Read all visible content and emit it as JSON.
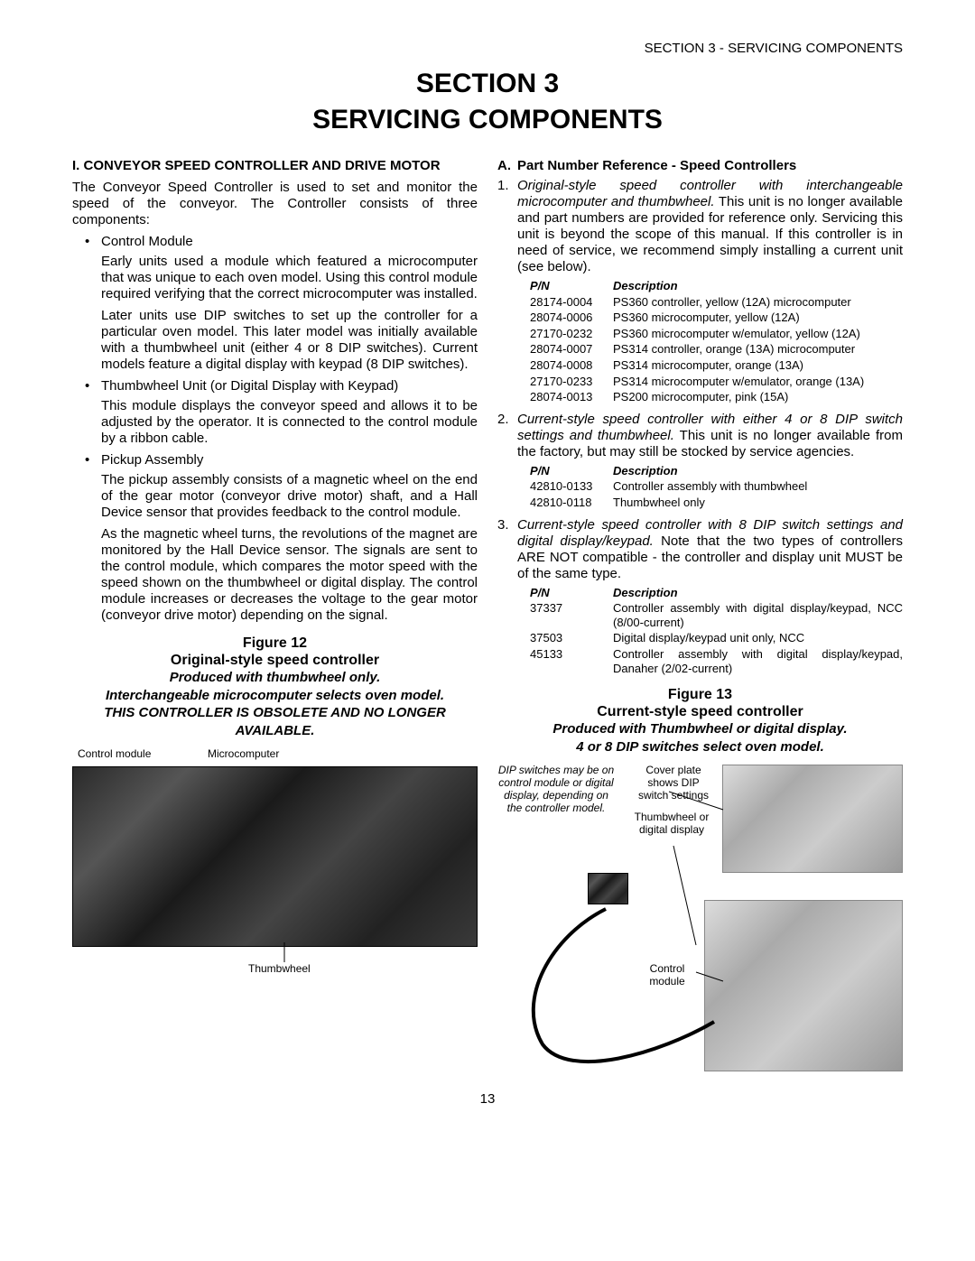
{
  "header_right": "SECTION 3 - SERVICING COMPONENTS",
  "title1": "SECTION 3",
  "title2": "SERVICING COMPONENTS",
  "left": {
    "head": "I. CONVEYOR SPEED CONTROLLER AND DRIVE MOTOR",
    "intro": "The Conveyor Speed Controller is used to set and monitor the speed of the conveyor.  The Controller consists of three components:",
    "b1": "Control Module",
    "b1p1": "Early units used a module which featured a microcomputer that was unique to each oven model.  Using this control module required verifying that the correct microcomputer was installed.",
    "b1p2": "Later units use DIP switches to set up the controller for a particular oven model.  This later model was initially available with a thumbwheel unit (either 4 or 8 DIP switches).  Current models feature a digital display with keypad (8 DIP switches).",
    "b2": "Thumbwheel Unit (or Digital Display with Keypad)",
    "b2p": "This module displays the conveyor speed and allows it to be adjusted by the operator.  It is connected to the control module by a ribbon cable.",
    "b3": "Pickup Assembly",
    "b3p1": "The pickup assembly consists of a magnetic wheel on the end of the gear motor (conveyor drive motor) shaft, and a Hall Device sensor that provides feedback to the control module.",
    "b3p2": "As the magnetic wheel turns, the revolutions of the magnet are monitored by the Hall Device sensor.  The signals are sent to the control module, which compares the motor speed with the speed shown on the thumbwheel or digital display.  The control module increases or decreases the voltage to the gear motor (conveyor drive motor) depending on the signal."
  },
  "right": {
    "head_a": "A.",
    "head_a_text": "Part Number Reference - Speed Controllers",
    "n1_it": "Original-style speed controller with interchangeable microcomputer and thumbwheel.",
    "n1_rest": "  This unit is no longer available and part numbers are provided for reference only.  Servicing this unit is beyond the scope of this manual.  If this controller is in need of service, we recommend simply installing a current unit (see below).",
    "t1_pn": "P/N",
    "t1_desc": "Description",
    "t1_rows": [
      [
        "28174-0004",
        "PS360 controller, yellow (12A) microcomputer"
      ],
      [
        "28074-0006",
        "PS360 microcomputer, yellow (12A)"
      ],
      [
        "27170-0232",
        "PS360 microcomputer w/emulator, yellow (12A)"
      ],
      [
        "28074-0007",
        "PS314 controller, orange (13A) microcomputer"
      ],
      [
        "28074-0008",
        "PS314 microcomputer, orange (13A)"
      ],
      [
        "27170-0233",
        "PS314 microcomputer w/emulator, orange (13A)"
      ],
      [
        "28074-0013",
        "PS200 microcomputer, pink (15A)"
      ]
    ],
    "n2_it": "Current-style speed controller with either 4 or 8 DIP switch settings and thumbwheel.",
    "n2_rest": "  This unit is no longer available from the factory, but may still be stocked by service agencies.",
    "t2_rows": [
      [
        "42810-0133",
        "Controller assembly with thumbwheel"
      ],
      [
        "42810-0118",
        "Thumbwheel only"
      ]
    ],
    "n3_it": "Current-style speed controller with 8 DIP switch settings and digital display/keypad.",
    "n3_rest": "  Note that the two types of controllers ARE NOT compatible - the controller and display unit MUST be of the same type.",
    "t3_rows": [
      [
        "37337",
        "Controller assembly with digital display/keypad, NCC (8/00-current)"
      ],
      [
        "37503",
        "Digital display/keypad unit only, NCC"
      ],
      [
        "45133",
        "Controller assembly with digital display/keypad, Danaher (2/02-current)"
      ]
    ]
  },
  "fig12": {
    "title": "Figure 12",
    "sub1": "Original-style speed controller",
    "sub2": "Produced with thumbwheel only.",
    "sub3": "Interchangeable microcomputer selects oven model.",
    "sub4": "THIS CONTROLLER IS OBSOLETE AND NO LONGER AVAILABLE.",
    "lbl_cm": "Control module",
    "lbl_mc": "Microcomputer",
    "lbl_tw": "Thumbwheel"
  },
  "fig13": {
    "title": "Figure 13",
    "sub1": "Current-style speed controller",
    "sub2": "Produced with Thumbwheel or digital display.",
    "sub3": "4 or 8 DIP switches select oven model.",
    "lbl_dip": "DIP switches may be on control module or digital display, depending on the controller model.",
    "lbl_cover": "Cover plate shows DIP switch settings",
    "lbl_tw": "Thumbwheel or digital display",
    "lbl_cm": "Control module"
  },
  "page_num": "13"
}
